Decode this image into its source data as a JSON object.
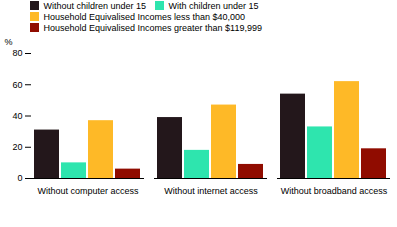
{
  "chart_data": {
    "type": "bar",
    "categories": [
      "Without computer access",
      "Without internet access",
      "Without broadband access"
    ],
    "series": [
      {
        "name": "Without children under 15",
        "values": [
          31,
          39,
          54
        ]
      },
      {
        "name": "With children under 15",
        "values": [
          10,
          18,
          33
        ]
      },
      {
        "name": "Household Equivalised Incomes less than $40,000",
        "values": [
          37,
          47,
          62
        ]
      },
      {
        "name": "Household Equivalised Incomes greater than $119,999",
        "values": [
          6,
          9,
          19
        ]
      }
    ],
    "ylabel": "%",
    "ylim": [
      0,
      80
    ],
    "yticks": [
      0,
      20,
      40,
      60,
      80
    ],
    "grid": false,
    "legend": "upper left"
  }
}
